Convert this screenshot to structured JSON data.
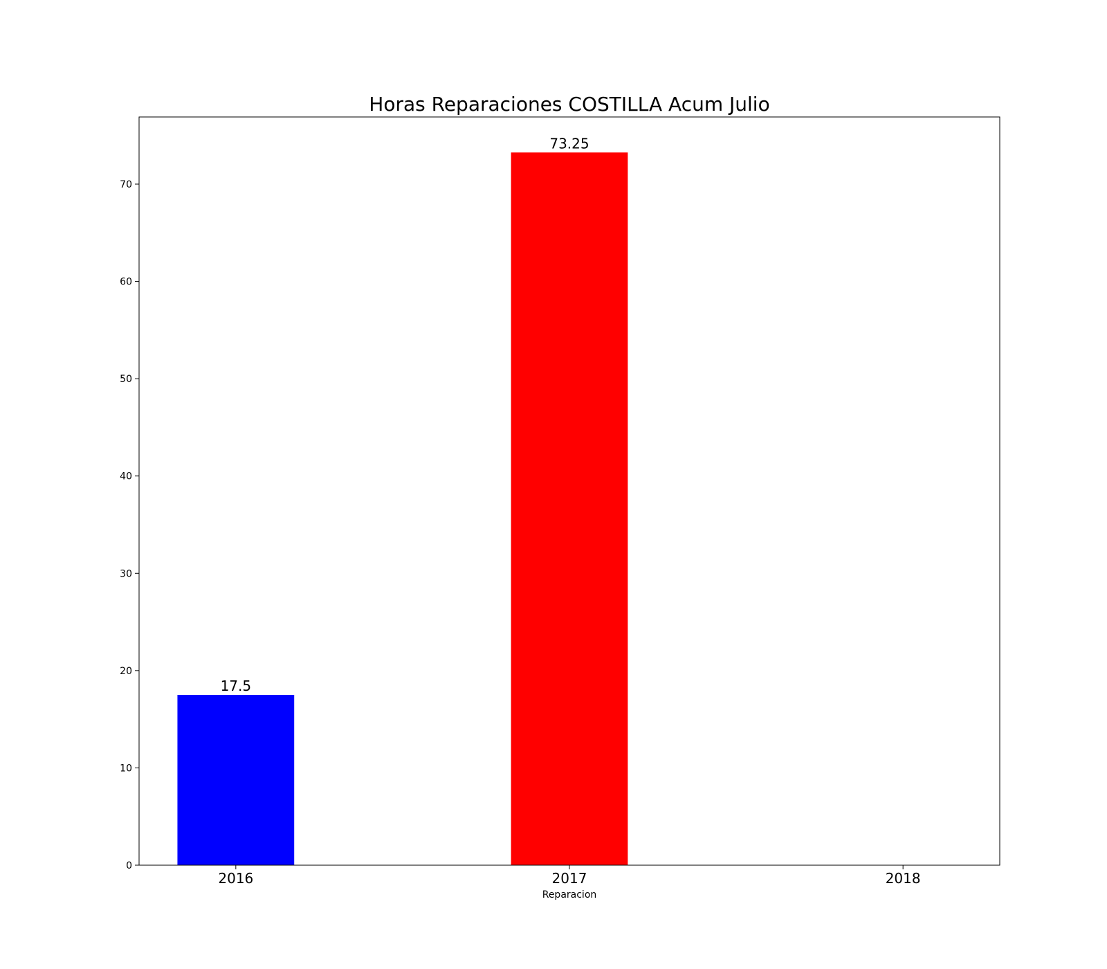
{
  "chart_data": {
    "type": "bar",
    "title": "Horas Reparaciones COSTILLA Acum Julio",
    "xlabel": "Reparacion",
    "ylabel": "",
    "categories": [
      "2016",
      "2017",
      "2018"
    ],
    "values": [
      17.5,
      73.25,
      0
    ],
    "data_labels": [
      "17.5",
      "73.25",
      ""
    ],
    "colors": [
      "#0000ff",
      "#ff0000",
      "#00aa00"
    ],
    "ylim": [
      0,
      76.9
    ],
    "yticks": [
      0,
      10,
      20,
      30,
      40,
      50,
      60,
      70
    ],
    "grid": false,
    "legend": "none"
  }
}
